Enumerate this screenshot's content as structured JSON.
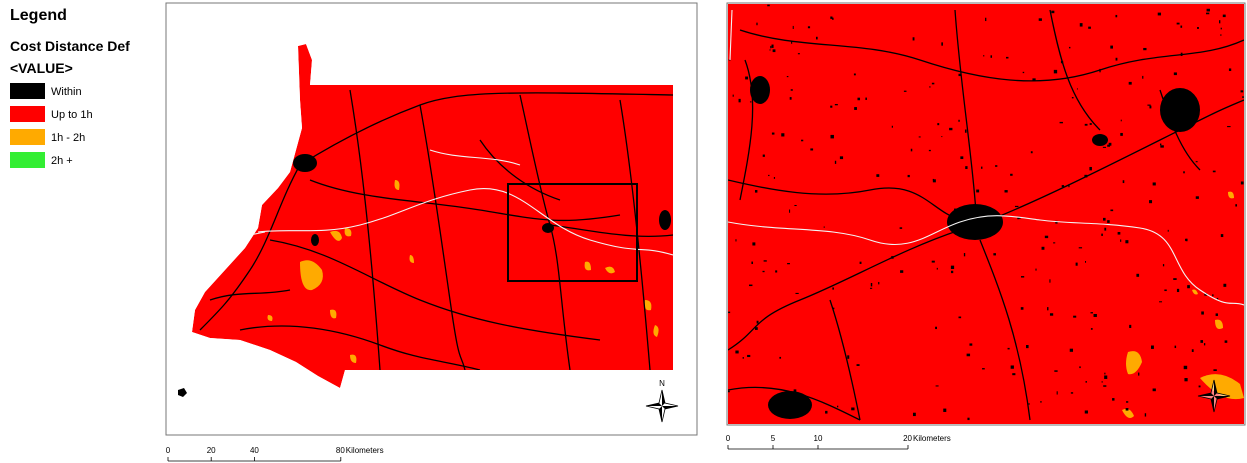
{
  "legend": {
    "title": "Legend",
    "field": "Cost Distance Def",
    "subtitle": "<VALUE>",
    "items": [
      {
        "label": "Within",
        "color": "#000000"
      },
      {
        "label": "Up to 1h",
        "color": "#ff0000"
      },
      {
        "label": "1h - 2h",
        "color": "#ffaa00"
      },
      {
        "label": "2h +",
        "color": "#33ee33"
      }
    ]
  },
  "main_map": {
    "scale_bar": {
      "ticks": [
        0,
        20,
        40,
        80
      ],
      "unit": "Kilometers"
    },
    "north_arrow": "N"
  },
  "inset_map": {
    "scale_bar": {
      "ticks": [
        0,
        5,
        10,
        20
      ],
      "unit": "Kilometers"
    }
  }
}
